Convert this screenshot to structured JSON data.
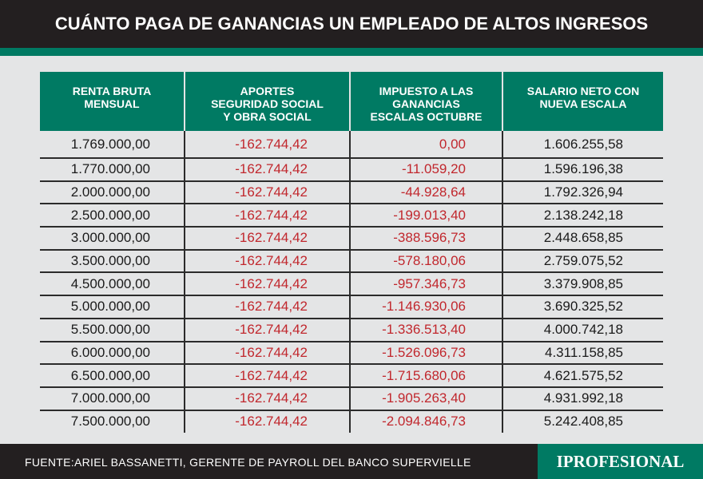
{
  "title": "CUÁNTO PAGA DE GANANCIAS UN EMPLEADO DE ALTOS INGRESOS",
  "colors": {
    "header_bg": "#231f20",
    "accent": "#007a63",
    "negative": "#c1272d",
    "background": "#e4e5e6"
  },
  "table": {
    "headers": [
      [
        "RENTA BRUTA",
        "MENSUAL"
      ],
      [
        "APORTES",
        "SEGURIDAD SOCIAL",
        "Y OBRA SOCIAL"
      ],
      [
        "IMPUESTO A LAS",
        "GANANCIAS",
        "ESCALAS OCTUBRE"
      ],
      [
        "SALARIO NETO CON",
        "NUEVA ESCALA"
      ]
    ],
    "rows": [
      [
        "1.769.000,00",
        "-162.744,42",
        "0,00",
        "1.606.255,58"
      ],
      [
        "1.770.000,00",
        "-162.744,42",
        "-11.059,20",
        "1.596.196,38"
      ],
      [
        "2.000.000,00",
        "-162.744,42",
        "-44.928,64",
        "1.792.326,94"
      ],
      [
        "2.500.000,00",
        "-162.744,42",
        "-199.013,40",
        "2.138.242,18"
      ],
      [
        "3.000.000,00",
        "-162.744,42",
        "-388.596,73",
        "2.448.658,85"
      ],
      [
        "3.500.000,00",
        "-162.744,42",
        "-578.180,06",
        "2.759.075,52"
      ],
      [
        "4.500.000,00",
        "-162.744,42",
        "-957.346,73",
        "3.379.908,85"
      ],
      [
        "5.000.000,00",
        "-162.744,42",
        "-1.146.930,06",
        "3.690.325,52"
      ],
      [
        "5.500.000,00",
        "-162.744,42",
        "-1.336.513,40",
        "4.000.742,18"
      ],
      [
        "6.000.000,00",
        "-162.744,42",
        "-1.526.096,73",
        "4.311.158,85"
      ],
      [
        "6.500.000,00",
        "-162.744,42",
        "-1.715.680,06",
        "4.621.575,52"
      ],
      [
        "7.000.000,00",
        "-162.744,42",
        "-1.905.263,40",
        "4.931.992,18"
      ],
      [
        "7.500.000,00",
        "-162.744,42",
        "-2.094.846,73",
        "5.242.408,85"
      ]
    ]
  },
  "footer": {
    "source": "FUENTE:ARIEL BASSANETTI, GERENTE DE PAYROLL DEL BANCO SUPERVIELLE",
    "logo": "IPROFESIONAL"
  }
}
